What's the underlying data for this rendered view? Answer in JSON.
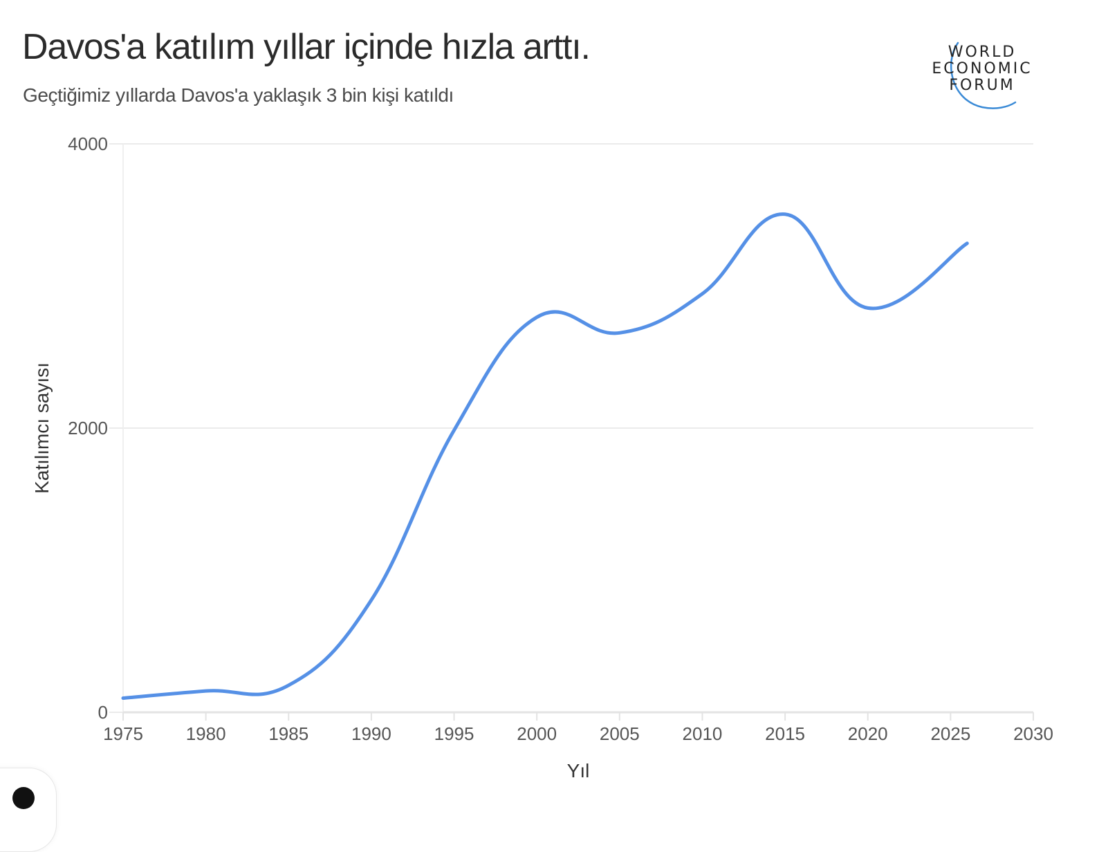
{
  "header": {
    "title": "Davos'a katılım yıllar içinde hızla arttı.",
    "subtitle": "Geçtiğimiz yıllarda Davos'a yaklaşık 3 bin kişi katıldı"
  },
  "logo": {
    "lines": [
      "WORLD",
      "ECONOMIC",
      "FORUM"
    ],
    "arc_color": "#3a8ad6"
  },
  "colors": {
    "line": "#5590e6",
    "grid": "#ebebeb",
    "axis": "#e3e3e3",
    "tick_text": "#555555",
    "label_text": "#333333"
  },
  "chart_data": {
    "type": "line",
    "title": "Davos'a katılım yıllar içinde hızla arttı.",
    "subtitle": "Geçtiğimiz yıllarda Davos'a yaklaşık 3 bin kişi katıldı",
    "xlabel": "Yıl",
    "ylabel": "Katılımcı sayısı",
    "xlim": [
      1975,
      2030
    ],
    "ylim": [
      0,
      4000
    ],
    "x_ticks": [
      1975,
      1980,
      1985,
      1990,
      1995,
      2000,
      2005,
      2010,
      2015,
      2020,
      2025,
      2030
    ],
    "y_ticks": [
      0,
      2000,
      4000
    ],
    "grid": {
      "horizontal": true,
      "vertical": false
    },
    "legend": null,
    "series": [
      {
        "name": "Katılımcı sayısı",
        "x": [
          1975,
          1980,
          1985,
          1990,
          1995,
          2000,
          2005,
          2010,
          2015,
          2020,
          2026
        ],
        "values": [
          100,
          150,
          190,
          790,
          1985,
          2780,
          2670,
          2945,
          3505,
          2845,
          3300
        ]
      }
    ]
  },
  "axes": {
    "x_ticks": [
      "1975",
      "1980",
      "1985",
      "1990",
      "1995",
      "2000",
      "2005",
      "2010",
      "2015",
      "2020",
      "2025",
      "2030"
    ],
    "y_ticks": [
      "0",
      "2000",
      "4000"
    ],
    "xlabel": "Yıl",
    "ylabel": "Katılımcı sayısı"
  }
}
